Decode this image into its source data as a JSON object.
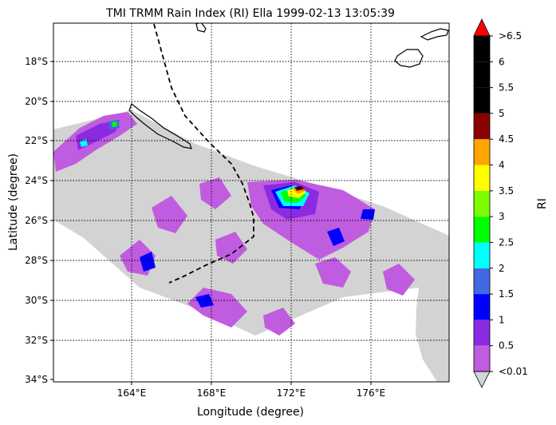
{
  "title": "TMI TRMM Rain Index (RI) Ella 1999-02-13 13:05:39",
  "xlabel": "Longitude (degree)",
  "ylabel": "Latitude (degree)",
  "colorbar": {
    "label": "RI",
    "ticks": [
      "<0.01",
      "0.5",
      "1",
      "1.5",
      "2",
      "2.5",
      "3",
      "3.5",
      "4",
      "4.5",
      "5",
      "5.5",
      "6",
      ">6.5"
    ],
    "colors": [
      "#c05ce0",
      "#8a2be2",
      "#0000ff",
      "#4169e1",
      "#00ffff",
      "#00ff00",
      "#7cfc00",
      "#ffff00",
      "#ffa500",
      "#8b0000",
      "#000000",
      "#000000",
      "#000000"
    ],
    "under_color": "#d3d3d3",
    "over_color": "#ff0000"
  },
  "map": {
    "lon_ticks": [
      "164°E",
      "168°E",
      "172°E",
      "176°E"
    ],
    "lat_ticks": [
      "18°S",
      "20°S",
      "22°S",
      "24°S",
      "26°S",
      "28°S",
      "30°S",
      "32°S",
      "34°S"
    ],
    "lon_range": [
      160.0,
      180.0
    ],
    "lat_range": [
      -34.2,
      -16.2
    ],
    "grid": true,
    "swath_no_rain_color": "#d3d3d3",
    "storm_track_style": "dashed"
  }
}
